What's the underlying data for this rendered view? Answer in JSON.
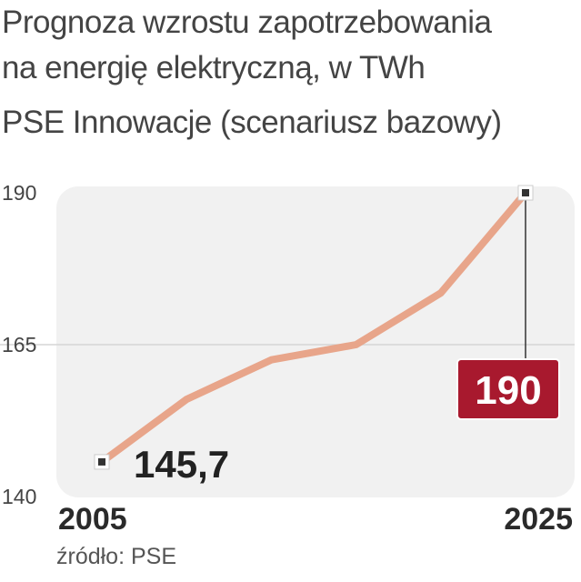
{
  "header": {
    "title_line1": "Prognoza wzrostu zapotrzebowania",
    "title_line2": "na energię elektryczną, w TWh",
    "subtitle": "PSE Innowacje (scenariusz bazowy)"
  },
  "footer": {
    "source": "źródło: PSE"
  },
  "colors": {
    "line": "#e8a58a",
    "highlight_box": "#a8192e",
    "plot_background": "#f1f1f1"
  },
  "chart_data": {
    "type": "line",
    "x": [
      2005,
      2009,
      2013,
      2017,
      2021,
      2025
    ],
    "values": [
      145.7,
      156,
      162.5,
      165,
      173.5,
      190
    ],
    "xlim": [
      2005,
      2025
    ],
    "ylim": [
      140,
      190
    ],
    "y_ticks": [
      "140",
      "165",
      "190"
    ],
    "x_tick_labels": [
      "2005",
      "2025"
    ],
    "grid": "horizontal at 165",
    "annotations": {
      "start_label": "145,7",
      "end_label": "190"
    }
  }
}
